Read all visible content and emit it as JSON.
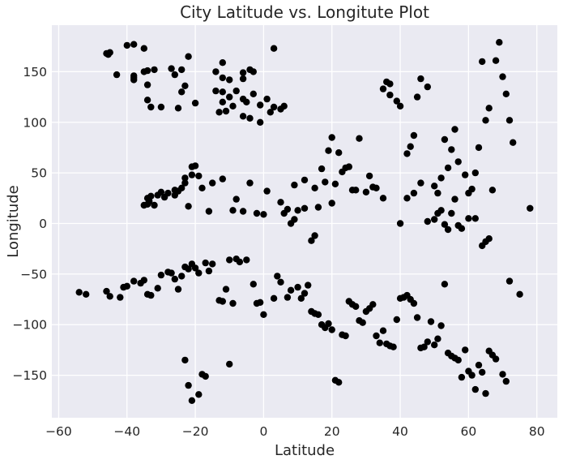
{
  "chart_data": {
    "type": "scatter",
    "title": "City Latitude vs.  Longitute Plot",
    "xlabel": "Latitude",
    "ylabel": "Longitude",
    "xlim": [
      -62,
      86
    ],
    "ylim": [
      -192,
      196
    ],
    "xticks": [
      -60,
      -40,
      -20,
      0,
      20,
      40,
      60,
      80
    ],
    "yticks": [
      -150,
      -100,
      -50,
      0,
      50,
      100,
      150
    ],
    "grid": true,
    "background": "#eaeaf2",
    "gridColor": "#ffffff",
    "markerColor": "#000000",
    "series": [
      {
        "points": [
          [
            -46,
            168
          ],
          [
            -45.5,
            167
          ],
          [
            -45,
            169
          ],
          [
            -40,
            176
          ],
          [
            -38,
            177
          ],
          [
            -35,
            173
          ],
          [
            -43,
            147
          ],
          [
            -38,
            146
          ],
          [
            -38,
            142
          ],
          [
            -38,
            144
          ],
          [
            -34,
            151
          ],
          [
            -35,
            150
          ],
          [
            -32,
            152
          ],
          [
            -34,
            137
          ],
          [
            -34,
            122
          ],
          [
            -33,
            115
          ],
          [
            -30,
            115
          ],
          [
            -27,
            153
          ],
          [
            -26,
            147
          ],
          [
            -24,
            152
          ],
          [
            -22,
            165
          ],
          [
            -24,
            130
          ],
          [
            -20,
            119
          ],
          [
            -23,
            136
          ],
          [
            -25,
            114
          ],
          [
            -12,
            159
          ],
          [
            -14,
            150
          ],
          [
            -12,
            144
          ],
          [
            -10,
            142
          ],
          [
            -6,
            149
          ],
          [
            -6,
            143
          ],
          [
            -4,
            152
          ],
          [
            -3,
            150
          ],
          [
            -12,
            130
          ],
          [
            -14,
            131
          ],
          [
            -8,
            131
          ],
          [
            -6,
            123
          ],
          [
            -5,
            120
          ],
          [
            -3,
            128
          ],
          [
            -1,
            100
          ],
          [
            3,
            173
          ],
          [
            1,
            123
          ],
          [
            2,
            110
          ],
          [
            3,
            115
          ],
          [
            5,
            113
          ],
          [
            6,
            116
          ],
          [
            -1,
            117
          ],
          [
            -6,
            106
          ],
          [
            -4,
            104
          ],
          [
            -9,
            116
          ],
          [
            -10,
            125
          ],
          [
            -12,
            120
          ],
          [
            -13,
            110
          ],
          [
            -11,
            111
          ],
          [
            -34,
            25
          ],
          [
            -34,
            19
          ],
          [
            -33,
            27
          ],
          [
            -32,
            18
          ],
          [
            -29,
            26
          ],
          [
            -28,
            30
          ],
          [
            -26,
            28
          ],
          [
            -25,
            32
          ],
          [
            -23,
            45
          ],
          [
            -23,
            40
          ],
          [
            -22,
            17
          ],
          [
            -21,
            48
          ],
          [
            -21,
            56
          ],
          [
            -20,
            57
          ],
          [
            -19,
            47
          ],
          [
            -16,
            12
          ],
          [
            -15,
            40
          ],
          [
            -12,
            44
          ],
          [
            -9,
            13
          ],
          [
            -8,
            24
          ],
          [
            -6,
            12
          ],
          [
            -4,
            40
          ],
          [
            -2,
            10
          ],
          [
            0,
            9
          ],
          [
            1,
            32
          ],
          [
            -35,
            18
          ],
          [
            -33.5,
            22
          ],
          [
            -31,
            28
          ],
          [
            -30,
            31
          ],
          [
            -26,
            33
          ],
          [
            -24,
            35
          ],
          [
            -18,
            35
          ],
          [
            5,
            21
          ],
          [
            6,
            10
          ],
          [
            7,
            14
          ],
          [
            8,
            0
          ],
          [
            9,
            4
          ],
          [
            9,
            38
          ],
          [
            10,
            13
          ],
          [
            12,
            15
          ],
          [
            12,
            43
          ],
          [
            14,
            -17
          ],
          [
            15,
            -12
          ],
          [
            15,
            35
          ],
          [
            16,
            16
          ],
          [
            17,
            54
          ],
          [
            18,
            41
          ],
          [
            19,
            72
          ],
          [
            20,
            20
          ],
          [
            20,
            85
          ],
          [
            21,
            39
          ],
          [
            22,
            70
          ],
          [
            23,
            51
          ],
          [
            24,
            55
          ],
          [
            25,
            56
          ],
          [
            26,
            33
          ],
          [
            27,
            33
          ],
          [
            28,
            84
          ],
          [
            30,
            31
          ],
          [
            31,
            47
          ],
          [
            32,
            36
          ],
          [
            33,
            35
          ],
          [
            35,
            25
          ],
          [
            35,
            133
          ],
          [
            36,
            140
          ],
          [
            37,
            138
          ],
          [
            37,
            127
          ],
          [
            39,
            121
          ],
          [
            40,
            116
          ],
          [
            42,
            69
          ],
          [
            43,
            76
          ],
          [
            44,
            87
          ],
          [
            45,
            125
          ],
          [
            46,
            143
          ],
          [
            48,
            135
          ],
          [
            50,
            37
          ],
          [
            51,
            30
          ],
          [
            52,
            45
          ],
          [
            53,
            83
          ],
          [
            54,
            55
          ],
          [
            55,
            73
          ],
          [
            56,
            93
          ],
          [
            57,
            61
          ],
          [
            59,
            48
          ],
          [
            60,
            30
          ],
          [
            61,
            34
          ],
          [
            62,
            50
          ],
          [
            63,
            75
          ],
          [
            64,
            160
          ],
          [
            65,
            102
          ],
          [
            66,
            114
          ],
          [
            67,
            33
          ],
          [
            68,
            161
          ],
          [
            69,
            179
          ],
          [
            70,
            145
          ],
          [
            71,
            128
          ],
          [
            72,
            102
          ],
          [
            73,
            80
          ],
          [
            40,
            0
          ],
          [
            42,
            25
          ],
          [
            44,
            30
          ],
          [
            46,
            40
          ],
          [
            48,
            2
          ],
          [
            50,
            4
          ],
          [
            51,
            10
          ],
          [
            52,
            13
          ],
          [
            53,
            -1
          ],
          [
            54,
            -6
          ],
          [
            55,
            10
          ],
          [
            56,
            24
          ],
          [
            57,
            -2
          ],
          [
            58,
            -5
          ],
          [
            60,
            5
          ],
          [
            62,
            5
          ],
          [
            64,
            -22
          ],
          [
            65,
            -18
          ],
          [
            66,
            -15
          ],
          [
            3,
            -74
          ],
          [
            4,
            -52
          ],
          [
            5,
            -58
          ],
          [
            7,
            -73
          ],
          [
            8,
            -66
          ],
          [
            10,
            -63
          ],
          [
            11,
            -74
          ],
          [
            12,
            -69
          ],
          [
            13,
            -61
          ],
          [
            14,
            -87
          ],
          [
            15,
            -89
          ],
          [
            16,
            -90
          ],
          [
            17,
            -100
          ],
          [
            18,
            -103
          ],
          [
            19,
            -99
          ],
          [
            20,
            -105
          ],
          [
            21,
            -155
          ],
          [
            22,
            -157
          ],
          [
            23,
            -110
          ],
          [
            24,
            -111
          ],
          [
            25,
            -77
          ],
          [
            26,
            -80
          ],
          [
            27,
            -82
          ],
          [
            28,
            -96
          ],
          [
            29,
            -98
          ],
          [
            30,
            -87
          ],
          [
            31,
            -84
          ],
          [
            32,
            -80
          ],
          [
            33,
            -111
          ],
          [
            34,
            -118
          ],
          [
            35,
            -106
          ],
          [
            36,
            -119
          ],
          [
            37,
            -121
          ],
          [
            38,
            -122
          ],
          [
            39,
            -95
          ],
          [
            40,
            -74
          ],
          [
            41,
            -73
          ],
          [
            42,
            -71
          ],
          [
            43,
            -75
          ],
          [
            44,
            -79
          ],
          [
            45,
            -93
          ],
          [
            46,
            -123
          ],
          [
            47,
            -122
          ],
          [
            48,
            -117
          ],
          [
            49,
            -97
          ],
          [
            50,
            -120
          ],
          [
            51,
            -114
          ],
          [
            52,
            -101
          ],
          [
            53,
            -60
          ],
          [
            54,
            -128
          ],
          [
            55,
            -131
          ],
          [
            56,
            -133
          ],
          [
            57,
            -135
          ],
          [
            58,
            -152
          ],
          [
            59,
            -125
          ],
          [
            60,
            -146
          ],
          [
            61,
            -150
          ],
          [
            62,
            -164
          ],
          [
            63,
            -140
          ],
          [
            64,
            -147
          ],
          [
            65,
            -168
          ],
          [
            66,
            -126
          ],
          [
            67,
            -130
          ],
          [
            68,
            -134
          ],
          [
            70,
            -149
          ],
          [
            71,
            -156
          ],
          [
            72,
            -57
          ],
          [
            75,
            -70
          ],
          [
            78,
            15
          ],
          [
            -54,
            -68
          ],
          [
            -52,
            -70
          ],
          [
            -46,
            -67
          ],
          [
            -45,
            -72
          ],
          [
            -42,
            -73
          ],
          [
            -41,
            -63
          ],
          [
            -40,
            -62
          ],
          [
            -38,
            -57
          ],
          [
            -36,
            -59
          ],
          [
            -35,
            -56
          ],
          [
            -34,
            -70
          ],
          [
            -33,
            -71
          ],
          [
            -31,
            -64
          ],
          [
            -30,
            -51
          ],
          [
            -28,
            -48
          ],
          [
            -27,
            -49
          ],
          [
            -26,
            -55
          ],
          [
            -25,
            -65
          ],
          [
            -24,
            -52
          ],
          [
            -23,
            -43
          ],
          [
            -22,
            -45
          ],
          [
            -21,
            -40
          ],
          [
            -20,
            -44
          ],
          [
            -19,
            -49
          ],
          [
            -17,
            -39
          ],
          [
            -16,
            -47
          ],
          [
            -15,
            -40
          ],
          [
            -13,
            -76
          ],
          [
            -12,
            -77
          ],
          [
            -11,
            -65
          ],
          [
            -10,
            -36
          ],
          [
            -9,
            -79
          ],
          [
            -8,
            -35
          ],
          [
            -7,
            -38
          ],
          [
            -5,
            -36
          ],
          [
            -3,
            -60
          ],
          [
            -2,
            -79
          ],
          [
            -1,
            -78
          ],
          [
            0,
            -90
          ],
          [
            -23,
            -135
          ],
          [
            -22,
            -160
          ],
          [
            -21,
            -175
          ],
          [
            -19,
            -169
          ],
          [
            -18,
            -149
          ],
          [
            -17,
            -151
          ],
          [
            -10,
            -139
          ]
        ]
      }
    ]
  }
}
